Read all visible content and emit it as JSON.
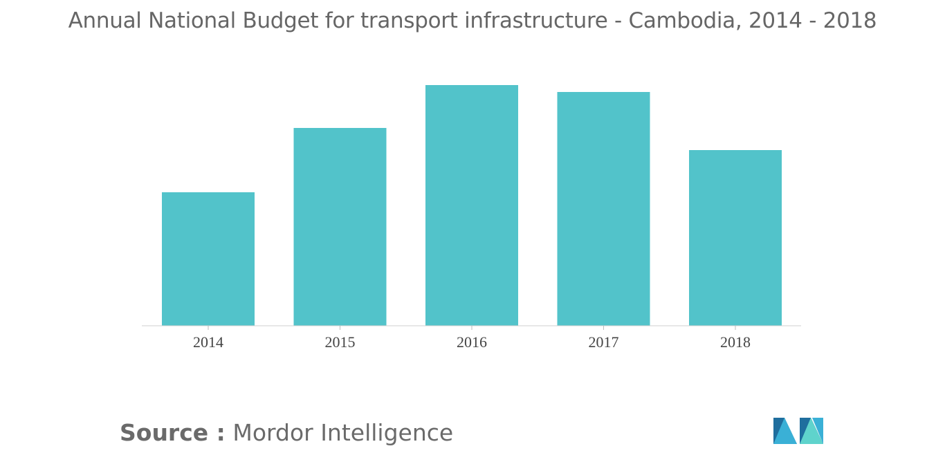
{
  "chart_data": {
    "type": "bar",
    "title": "Annual National Budget for transport infrastructure - Cambodia, 2014 - 2018",
    "categories": [
      "2014",
      "2015",
      "2016",
      "2017",
      "2018"
    ],
    "values": [
      193,
      286,
      348,
      338,
      254
    ],
    "xlabel": "",
    "ylabel": "",
    "ylim": [
      0,
      360
    ],
    "grid": false,
    "legend": "none",
    "bar_color": "#52c3ca"
  },
  "footer": {
    "source_label": "Source :",
    "source_value": "Mordor Intelligence"
  },
  "logo": {
    "icon": "mordor-intelligence-logo",
    "colors": [
      "#1f6e9e",
      "#3ab0d6",
      "#5fd3cc"
    ]
  }
}
